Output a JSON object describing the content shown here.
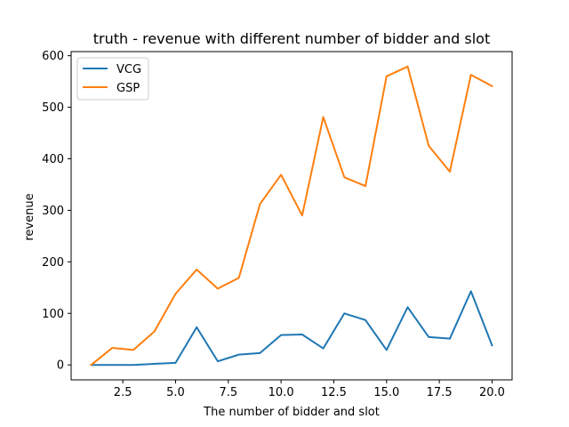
{
  "chart_data": {
    "type": "line",
    "title": "truth - revenue with different number of bidder and slot",
    "xlabel": "The number of bidder and slot",
    "ylabel": "revenue",
    "xlim": [
      0.05,
      20.95
    ],
    "ylim": [
      -29,
      608
    ],
    "xticks": [
      2.5,
      5.0,
      7.5,
      10.0,
      12.5,
      15.0,
      17.5,
      20.0
    ],
    "xtick_labels": [
      "2.5",
      "5.0",
      "7.5",
      "10.0",
      "12.5",
      "15.0",
      "17.5",
      "20.0"
    ],
    "yticks": [
      0,
      100,
      200,
      300,
      400,
      500,
      600
    ],
    "ytick_labels": [
      "0",
      "100",
      "200",
      "300",
      "400",
      "500",
      "600"
    ],
    "grid": false,
    "legend_position": "top-left",
    "x": [
      1,
      2,
      3,
      4,
      5,
      6,
      7,
      8,
      9,
      10,
      11,
      12,
      13,
      14,
      15,
      16,
      17,
      18,
      19,
      20
    ],
    "series": [
      {
        "name": "VCG",
        "color": "#1f77b4",
        "values": [
          0,
          0,
          0,
          2,
          4,
          73,
          7,
          20,
          23,
          58,
          59,
          32,
          100,
          87,
          29,
          112,
          54,
          51,
          143,
          38
        ]
      },
      {
        "name": "GSP",
        "color": "#ff7f0e",
        "values": [
          0,
          33,
          29,
          65,
          138,
          185,
          148,
          169,
          312,
          369,
          290,
          481,
          364,
          347,
          560,
          579,
          425,
          375,
          563,
          541
        ]
      }
    ]
  }
}
